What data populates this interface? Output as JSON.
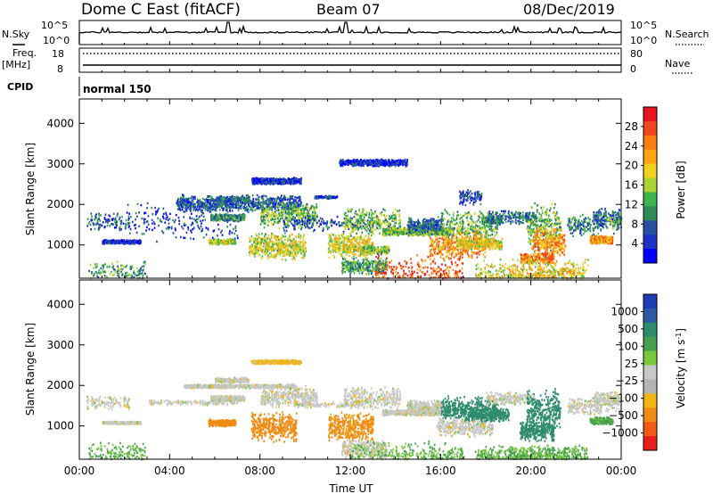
{
  "header": {
    "title": "Dome C East (fitACF)",
    "beam": "Beam 07",
    "date": "08/Dec/2019"
  },
  "params": {
    "nsky_label": "N.Sky",
    "nsearch_label": "N.Search",
    "freq_label": "Freq.",
    "freq_unit": "[MHz]",
    "nave_label": "Nave",
    "cpid_label": "CPID",
    "cpid_value": "normal 150",
    "noise_ticks_left": [
      "10^5",
      "10^0"
    ],
    "noise_ticks_right": [
      "10^5",
      "10^0"
    ],
    "freq_ticks": [
      "18",
      "8"
    ],
    "nave_ticks": [
      "80",
      "0"
    ]
  },
  "colorbars": {
    "power": {
      "label": "Power [dB]",
      "ticks": [
        "28",
        "24",
        "20",
        "16",
        "12",
        "8",
        "4"
      ],
      "colors_top_to_bottom": [
        "#e8141e",
        "#f0461e",
        "#fa7d0f",
        "#ffa514",
        "#f0d21e",
        "#aad232",
        "#3cb44b",
        "#2d8c55",
        "#2850a0",
        "#1e32c8",
        "#0000ff"
      ]
    },
    "velocity": {
      "label": "Velocity [m s",
      "label_exp": "-1",
      "label_tail": "]",
      "ticks": [
        "1000",
        "500",
        "100",
        "25",
        "−25",
        "−100",
        "−500",
        "−1000"
      ],
      "colors_top_to_bottom": [
        "#1e3cb4",
        "#2d5aa0",
        "#2d8c6e",
        "#46a050",
        "#78c83c",
        "#c8c8c8",
        "#b4b4b4",
        "#f0b414",
        "#f08c14",
        "#f05a14",
        "#e81e1e"
      ]
    }
  },
  "chart_data": [
    {
      "type": "heatmap",
      "name": "power",
      "ylabel": "Slant Range [km]",
      "xlim_hours": [
        0,
        24
      ],
      "ylim_km": [
        180,
        4600
      ],
      "yticks": [
        "4000",
        "3000",
        "2000",
        "1000"
      ],
      "ytick_values": [
        4000,
        3000,
        2000,
        1000
      ],
      "grid": false,
      "blobs_time_range_power_dB": [
        [
          0.3,
          1.9,
          1600,
          1.4,
          60,
          8
        ],
        [
          0.4,
          2.5,
          290,
          2.0,
          80,
          12
        ],
        [
          1.0,
          1.7,
          1100,
          0.3,
          200,
          5
        ],
        [
          2.0,
          5.0,
          1600,
          3.0,
          40,
          6
        ],
        [
          4.3,
          5.5,
          2050,
          1.2,
          150,
          8
        ],
        [
          5.7,
          1.2,
          1100,
          0.4,
          180,
          16
        ],
        [
          5.8,
          1.5,
          1700,
          0.5,
          300,
          11
        ],
        [
          6.0,
          1.5,
          2150,
          0.4,
          150,
          9
        ],
        [
          7.5,
          2.5,
          1000,
          2.0,
          200,
          17
        ],
        [
          8.0,
          2.5,
          1750,
          1.8,
          150,
          14
        ],
        [
          7.6,
          2.2,
          2600,
          0.5,
          200,
          6
        ],
        [
          9.0,
          4.0,
          1550,
          1.2,
          40,
          8
        ],
        [
          10.4,
          1.0,
          2200,
          0.2,
          100,
          7
        ],
        [
          11.0,
          2.0,
          1000,
          1.8,
          200,
          18
        ],
        [
          11.7,
          2.5,
          1600,
          2.0,
          120,
          14
        ],
        [
          11.6,
          2.0,
          500,
          1.2,
          150,
          12
        ],
        [
          11.5,
          3.0,
          3050,
          0.5,
          200,
          5
        ],
        [
          12.5,
          1.2,
          900,
          0.6,
          150,
          14
        ],
        [
          13.4,
          3.0,
          1350,
          0.6,
          250,
          14
        ],
        [
          13.0,
          4.0,
          290,
          3.0,
          90,
          26
        ],
        [
          14.5,
          1.6,
          1500,
          1.2,
          180,
          9
        ],
        [
          16.0,
          2.5,
          1450,
          2.5,
          150,
          14
        ],
        [
          15.5,
          2.5,
          1000,
          2.0,
          150,
          22
        ],
        [
          17.8,
          0.8,
          1600,
          0.6,
          100,
          12
        ],
        [
          16.8,
          1.0,
          2200,
          1.2,
          100,
          7
        ],
        [
          16.7,
          2.0,
          1050,
          0.8,
          150,
          18
        ],
        [
          18.0,
          2.2,
          1700,
          1.0,
          100,
          9
        ],
        [
          19.8,
          1.5,
          1450,
          3.5,
          200,
          14
        ],
        [
          20.0,
          1.5,
          1100,
          2.0,
          200,
          22
        ],
        [
          19.5,
          1.5,
          700,
          0.8,
          150,
          24
        ],
        [
          19.0,
          3.0,
          290,
          2.0,
          80,
          20
        ],
        [
          21.6,
          1.5,
          1500,
          1.6,
          100,
          10
        ],
        [
          22.6,
          1.0,
          1150,
          0.6,
          300,
          22
        ],
        [
          22.7,
          1.2,
          1700,
          1.5,
          150,
          9
        ],
        [
          23.3,
          1.0,
          1550,
          1.4,
          60,
          13
        ],
        [
          17.5,
          5.0,
          290,
          2.5,
          80,
          18
        ]
      ]
    },
    {
      "type": "heatmap",
      "name": "velocity",
      "ylabel": "Slant Range [km]",
      "xlabel": "Time UT",
      "xlim_hours": [
        0,
        24
      ],
      "ylim_km": [
        180,
        4600
      ],
      "yticks": [
        "4000",
        "3000",
        "2000",
        "1000"
      ],
      "ytick_values": [
        4000,
        3000,
        2000,
        1000
      ],
      "xticks": [
        "00:00",
        "04:00",
        "08:00",
        "12:00",
        "16:00",
        "20:00",
        "00:00"
      ],
      "xtick_values": [
        0,
        4,
        8,
        12,
        16,
        20,
        24
      ],
      "grid": false,
      "blobs_time_range_velocity_ms": [
        [
          0.3,
          1.9,
          1600,
          1.0,
          60,
          0
        ],
        [
          0.4,
          2.5,
          290,
          2.0,
          80,
          60
        ],
        [
          1.0,
          1.7,
          1100,
          0.2,
          200,
          0
        ],
        [
          3.0,
          4.0,
          1600,
          0.4,
          40,
          0
        ],
        [
          4.6,
          5.0,
          2000,
          0.3,
          150,
          0
        ],
        [
          5.7,
          1.2,
          1100,
          0.5,
          180,
          -200
        ],
        [
          5.8,
          1.5,
          1700,
          0.4,
          300,
          0
        ],
        [
          6.0,
          1.5,
          2150,
          0.4,
          150,
          0
        ],
        [
          7.6,
          2.0,
          1000,
          2.2,
          200,
          -150
        ],
        [
          8.0,
          2.5,
          1750,
          1.5,
          150,
          0
        ],
        [
          7.6,
          2.2,
          2600,
          0.3,
          200,
          -50
        ],
        [
          9.5,
          3.0,
          1550,
          0.5,
          40,
          0
        ],
        [
          11.0,
          2.0,
          1000,
          2.2,
          200,
          -120
        ],
        [
          11.7,
          2.5,
          1700,
          1.6,
          120,
          0
        ],
        [
          11.6,
          2.0,
          450,
          1.4,
          150,
          0
        ],
        [
          12.0,
          2.0,
          280,
          2.5,
          80,
          50
        ],
        [
          13.4,
          3.0,
          1350,
          0.4,
          250,
          0
        ],
        [
          14.5,
          1.6,
          1500,
          1.0,
          180,
          0
        ],
        [
          14.0,
          3.0,
          290,
          2.0,
          80,
          60
        ],
        [
          16.0,
          2.5,
          1450,
          1.8,
          150,
          300
        ],
        [
          15.8,
          2.5,
          1000,
          1.4,
          150,
          0
        ],
        [
          17.0,
          2.0,
          1300,
          1.0,
          150,
          300
        ],
        [
          18.0,
          2.2,
          1700,
          1.0,
          100,
          0
        ],
        [
          19.8,
          1.5,
          1400,
          3.0,
          200,
          300
        ],
        [
          19.5,
          1.5,
          900,
          1.5,
          200,
          300
        ],
        [
          19.0,
          3.0,
          290,
          1.5,
          80,
          60
        ],
        [
          21.6,
          1.5,
          1500,
          1.2,
          100,
          0
        ],
        [
          22.6,
          1.0,
          1150,
          0.5,
          300,
          80
        ],
        [
          22.7,
          1.2,
          1700,
          1.0,
          150,
          0
        ],
        [
          23.3,
          1.0,
          1550,
          1.2,
          60,
          0
        ],
        [
          17.5,
          5.0,
          290,
          1.5,
          80,
          60
        ]
      ]
    }
  ]
}
